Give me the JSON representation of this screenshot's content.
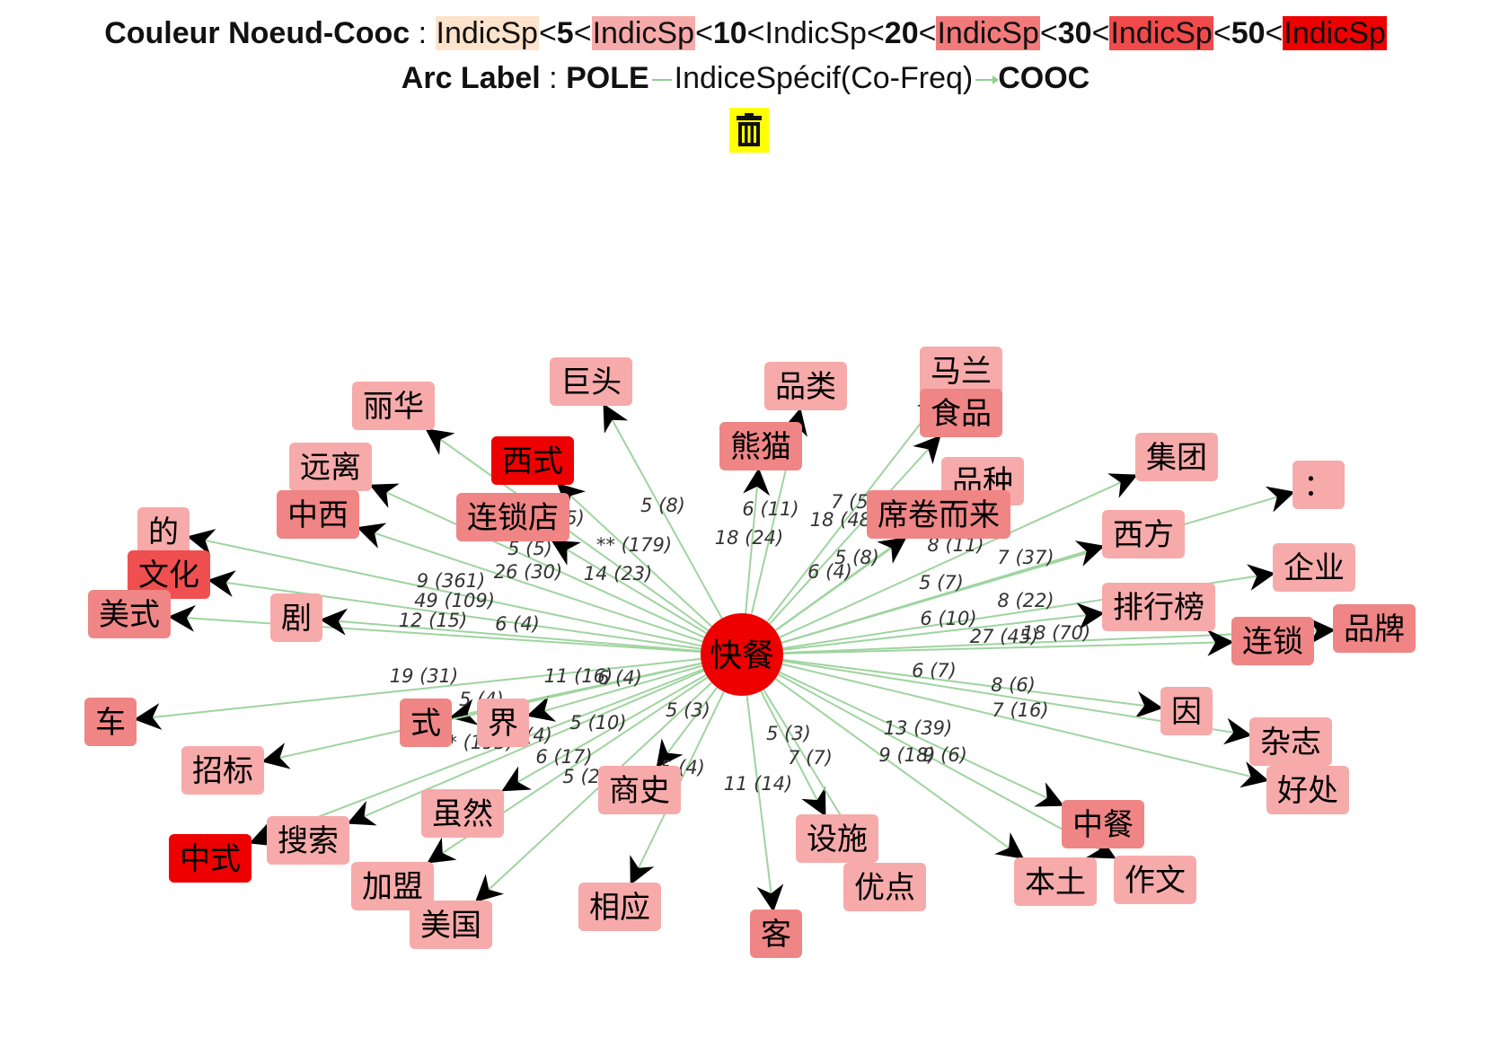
{
  "legend": {
    "title": "Couleur Noeud-Cooc",
    "sep": " : ",
    "items": [
      {
        "text": "IndicSp",
        "bg": "#fde3cc"
      },
      {
        "text": "<"
      },
      {
        "text": "5",
        "bold": true
      },
      {
        "text": "<"
      },
      {
        "text": "IndicSp",
        "bg": "#f7aaaa"
      },
      {
        "text": "<"
      },
      {
        "text": "10",
        "bold": true
      },
      {
        "text": "<"
      },
      {
        "text": "IndicSp"
      },
      {
        "text": "<"
      },
      {
        "text": "20",
        "bold": true
      },
      {
        "text": "<"
      },
      {
        "text": "IndicSp",
        "bg": "#f27a7a"
      },
      {
        "text": "<"
      },
      {
        "text": "30",
        "bold": true
      },
      {
        "text": "<"
      },
      {
        "text": "IndicSp",
        "bg": "#f04a4a"
      },
      {
        "text": "<"
      },
      {
        "text": "50",
        "bold": true
      },
      {
        "text": "<"
      },
      {
        "text": "IndicSp",
        "bg": "#ee0000"
      }
    ]
  },
  "arc_label": {
    "title": "Arc Label",
    "sep": " : ",
    "pole": "POLE",
    "middle": "IndiceSpécif(Co-Freq)",
    "cooc": "COOC"
  },
  "colors": {
    "c1": "#fde3cc",
    "c2": "#f7aaaa",
    "c3": "#f08080",
    "c4": "#f27070",
    "c5": "#f04a4a",
    "c6": "#ee0000",
    "edge": "#9fd49f"
  },
  "center": {
    "label": "快餐",
    "color": "#ee0000"
  },
  "nodes": [
    {
      "id": "lihua",
      "label": "丽华",
      "c": "c2"
    },
    {
      "id": "jutou",
      "label": "巨头",
      "c": "c2"
    },
    {
      "id": "pinlei",
      "label": "品类",
      "c": "c2"
    },
    {
      "id": "malan",
      "label": "马兰",
      "c": "c2"
    },
    {
      "id": "shipin",
      "label": "食品",
      "c": "c3"
    },
    {
      "id": "xishi",
      "label": "西式",
      "c": "c6"
    },
    {
      "id": "xiongmao",
      "label": "熊猫",
      "c": "c3"
    },
    {
      "id": "yuanli",
      "label": "远离",
      "c": "c2"
    },
    {
      "id": "liansuodian",
      "label": "连锁店",
      "c": "c3"
    },
    {
      "id": "pinzhong",
      "label": "品种",
      "c": "c2"
    },
    {
      "id": "jituan",
      "label": "集团",
      "c": "c2"
    },
    {
      "id": "zhongxi",
      "label": "中西",
      "c": "c3"
    },
    {
      "id": "xijuan",
      "label": "席卷而来",
      "c": "c3"
    },
    {
      "id": "colon",
      "label": "：",
      "c": "c2"
    },
    {
      "id": "de",
      "label": "的",
      "c": "c2"
    },
    {
      "id": "xifang",
      "label": "西方",
      "c": "c2"
    },
    {
      "id": "wenhua",
      "label": "文化",
      "c": "c5"
    },
    {
      "id": "qiye",
      "label": "企业",
      "c": "c2"
    },
    {
      "id": "meishi",
      "label": "美式",
      "c": "c3"
    },
    {
      "id": "ju",
      "label": "剧",
      "c": "c2"
    },
    {
      "id": "paihangbang",
      "label": "排行榜",
      "c": "c2"
    },
    {
      "id": "pinpai",
      "label": "品牌",
      "c": "c3"
    },
    {
      "id": "liansuo",
      "label": "连锁",
      "c": "c3"
    },
    {
      "id": "che",
      "label": "车",
      "c": "c3"
    },
    {
      "id": "shi",
      "label": "式",
      "c": "c3"
    },
    {
      "id": "jie",
      "label": "界",
      "c": "c2"
    },
    {
      "id": "yin",
      "label": "因",
      "c": "c2"
    },
    {
      "id": "zazhi",
      "label": "杂志",
      "c": "c2"
    },
    {
      "id": "zhaobiao",
      "label": "招标",
      "c": "c2"
    },
    {
      "id": "haochu",
      "label": "好处",
      "c": "c2"
    },
    {
      "id": "shangshi",
      "label": "商史",
      "c": "c2"
    },
    {
      "id": "suiran",
      "label": "虽然",
      "c": "c2"
    },
    {
      "id": "zhongcan",
      "label": "中餐",
      "c": "c3"
    },
    {
      "id": "sousuo",
      "label": "搜索",
      "c": "c2"
    },
    {
      "id": "zhongshi",
      "label": "中式",
      "c": "c6"
    },
    {
      "id": "sheshi",
      "label": "设施",
      "c": "c2"
    },
    {
      "id": "jiameng",
      "label": "加盟",
      "c": "c2"
    },
    {
      "id": "bentu",
      "label": "本土",
      "c": "c2"
    },
    {
      "id": "zuowen",
      "label": "作文",
      "c": "c2"
    },
    {
      "id": "youdian",
      "label": "优点",
      "c": "c2"
    },
    {
      "id": "xiangying",
      "label": "相应",
      "c": "c2"
    },
    {
      "id": "meiguo",
      "label": "美国",
      "c": "c2"
    },
    {
      "id": "ke",
      "label": "客",
      "c": "c3"
    }
  ],
  "edge_labels": [
    "5 (8)",
    "6 (11)",
    "7 (5)",
    "18 (48)",
    "18 (24)",
    "5 (5)",
    "** (179)",
    "5 (5)",
    "26 (30)",
    "14 (23)",
    "9 (361)",
    "49 (109)",
    "12 (15)",
    "6 (4)",
    "5 (8)",
    "6 (4)",
    "8 (11)",
    "7 (37)",
    "5 (7)",
    "8 (22)",
    "6 (10)",
    "27 (45)",
    "18 (70)",
    "19 (31)",
    "11 (16)",
    "6 (4)",
    "5 (4)",
    "** (193)",
    "5 (4)",
    "5 (10)",
    "5 (3)",
    "6 (17)",
    "5 (27)",
    "5 (4)",
    "5 (3)",
    "6 (7)",
    "8 (6)",
    "7 (16)",
    "13 (39)",
    "9 (18)",
    "9 (6)",
    "7 (7)",
    "11 (14)"
  ]
}
